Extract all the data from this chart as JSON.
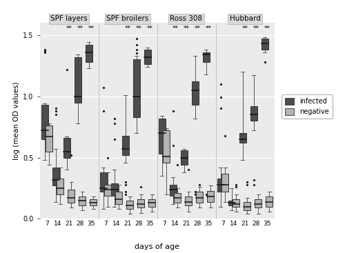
{
  "panels": [
    "SPF layers",
    "SPF broilers",
    "Ross 308",
    "Hubbard"
  ],
  "days": [
    7,
    14,
    21,
    28,
    35
  ],
  "infected_color": "#4d4d4d",
  "negative_color": "#b3b3b3",
  "background_color": "#ebebeb",
  "panel_header_color": "#d9d9d9",
  "grid_color": "#ffffff",
  "ylabel": "log (mean OD values)",
  "xlabel": "days of age",
  "ylim": [
    0.0,
    1.6
  ],
  "yticks": [
    0.0,
    0.5,
    1.0,
    1.5
  ],
  "significant_days": {
    "SPF layers": [
      21,
      28,
      35
    ],
    "SPF broilers": [
      21,
      28,
      35
    ],
    "Ross 308": [
      14,
      21,
      28,
      35
    ],
    "Hubbard": [
      21,
      28,
      35
    ]
  },
  "infected_boxes": {
    "SPF layers": {
      "7": {
        "q1": 0.65,
        "med": 0.72,
        "q3": 0.93,
        "whislo": 0.48,
        "whishi": 0.94,
        "fliers": [
          1.36,
          1.37,
          1.38
        ]
      },
      "14": {
        "q1": 0.27,
        "med": 0.32,
        "q3": 0.42,
        "whislo": 0.14,
        "whishi": 0.57,
        "fliers": [
          0.85,
          0.88,
          0.9
        ]
      },
      "21": {
        "q1": 0.5,
        "med": 0.55,
        "q3": 0.66,
        "whislo": 0.4,
        "whishi": 0.67,
        "fliers": [
          1.22
        ]
      },
      "28": {
        "q1": 0.95,
        "med": 1.0,
        "q3": 1.32,
        "whislo": 0.78,
        "whishi": 1.34,
        "fliers": []
      },
      "35": {
        "q1": 1.28,
        "med": 1.36,
        "q3": 1.42,
        "whislo": 1.23,
        "whishi": 1.44,
        "fliers": []
      }
    },
    "SPF broilers": {
      "7": {
        "q1": 0.22,
        "med": 0.25,
        "q3": 0.38,
        "whislo": 0.08,
        "whishi": 0.42,
        "fliers": [
          0.88,
          1.07
        ]
      },
      "14": {
        "q1": 0.19,
        "med": 0.24,
        "q3": 0.29,
        "whislo": 0.1,
        "whishi": 0.4,
        "fliers": [
          0.65,
          0.78,
          0.82
        ]
      },
      "21": {
        "q1": 0.52,
        "med": 0.57,
        "q3": 0.68,
        "whislo": 0.46,
        "whishi": 1.01,
        "fliers": [
          0.2,
          0.22,
          0.28,
          0.3
        ]
      },
      "28": {
        "q1": 0.83,
        "med": 1.0,
        "q3": 1.3,
        "whislo": 0.7,
        "whishi": 1.33,
        "fliers": [
          1.35,
          1.38,
          1.42,
          1.47
        ]
      },
      "35": {
        "q1": 1.26,
        "med": 1.32,
        "q3": 1.38,
        "whislo": 1.24,
        "whishi": 1.4,
        "fliers": []
      }
    },
    "Ross 308": {
      "7": {
        "q1": 0.53,
        "med": 0.7,
        "q3": 0.82,
        "whislo": 0.35,
        "whishi": 0.84,
        "fliers": []
      },
      "14": {
        "q1": 0.19,
        "med": 0.24,
        "q3": 0.28,
        "whislo": 0.12,
        "whishi": 0.34,
        "fliers": [
          0.6,
          0.88
        ]
      },
      "21": {
        "q1": 0.44,
        "med": 0.5,
        "q3": 0.56,
        "whislo": 0.38,
        "whishi": 0.57,
        "fliers": []
      },
      "28": {
        "q1": 0.93,
        "med": 1.05,
        "q3": 1.12,
        "whislo": 0.82,
        "whishi": 1.33,
        "fliers": [
          0.2,
          0.22
        ]
      },
      "35": {
        "q1": 1.28,
        "med": 1.34,
        "q3": 1.36,
        "whislo": 1.18,
        "whishi": 1.38,
        "fliers": [
          0.2
        ]
      }
    },
    "Hubbard": {
      "7": {
        "q1": 0.22,
        "med": 0.28,
        "q3": 0.33,
        "whislo": 0.1,
        "whishi": 0.42,
        "fliers": [
          0.9,
          0.99,
          1.1
        ]
      },
      "14": {
        "q1": 0.11,
        "med": 0.13,
        "q3": 0.15,
        "whislo": 0.07,
        "whishi": 0.25,
        "fliers": []
      },
      "21": {
        "q1": 0.62,
        "med": 0.65,
        "q3": 0.7,
        "whislo": 0.48,
        "whishi": 1.2,
        "fliers": []
      },
      "28": {
        "q1": 0.8,
        "med": 0.85,
        "q3": 0.92,
        "whislo": 0.72,
        "whishi": 1.17,
        "fliers": [
          0.28,
          0.32
        ]
      },
      "35": {
        "q1": 1.38,
        "med": 1.43,
        "q3": 1.47,
        "whislo": 1.36,
        "whishi": 1.48,
        "fliers": [
          1.28
        ]
      }
    }
  },
  "negative_boxes": {
    "SPF layers": {
      "7": {
        "q1": 0.55,
        "med": 0.67,
        "q3": 0.76,
        "whislo": 0.44,
        "whishi": 0.78,
        "fliers": []
      },
      "14": {
        "q1": 0.2,
        "med": 0.25,
        "q3": 0.33,
        "whislo": 0.12,
        "whishi": 0.42,
        "fliers": []
      },
      "21": {
        "q1": 0.13,
        "med": 0.17,
        "q3": 0.24,
        "whislo": 0.09,
        "whishi": 0.3,
        "fliers": [
          0.52
        ]
      },
      "28": {
        "q1": 0.11,
        "med": 0.15,
        "q3": 0.18,
        "whislo": 0.07,
        "whishi": 0.22,
        "fliers": []
      },
      "35": {
        "q1": 0.11,
        "med": 0.13,
        "q3": 0.16,
        "whislo": 0.08,
        "whishi": 0.18,
        "fliers": []
      }
    },
    "SPF broilers": {
      "7": {
        "q1": 0.19,
        "med": 0.24,
        "q3": 0.28,
        "whislo": 0.1,
        "whishi": 0.38,
        "fliers": [
          0.5
        ]
      },
      "14": {
        "q1": 0.12,
        "med": 0.16,
        "q3": 0.22,
        "whislo": 0.08,
        "whishi": 0.28,
        "fliers": []
      },
      "21": {
        "q1": 0.08,
        "med": 0.11,
        "q3": 0.15,
        "whislo": 0.04,
        "whishi": 0.18,
        "fliers": []
      },
      "28": {
        "q1": 0.09,
        "med": 0.12,
        "q3": 0.16,
        "whislo": 0.05,
        "whishi": 0.2,
        "fliers": [
          0.26
        ]
      },
      "35": {
        "q1": 0.1,
        "med": 0.13,
        "q3": 0.16,
        "whislo": 0.06,
        "whishi": 0.2,
        "fliers": []
      }
    },
    "Ross 308": {
      "7": {
        "q1": 0.46,
        "med": 0.51,
        "q3": 0.72,
        "whislo": 0.2,
        "whishi": 0.74,
        "fliers": []
      },
      "14": {
        "q1": 0.13,
        "med": 0.17,
        "q3": 0.21,
        "whislo": 0.09,
        "whishi": 0.25,
        "fliers": [
          0.44
        ]
      },
      "21": {
        "q1": 0.11,
        "med": 0.14,
        "q3": 0.18,
        "whislo": 0.06,
        "whishi": 0.22,
        "fliers": [
          0.4
        ]
      },
      "28": {
        "q1": 0.13,
        "med": 0.17,
        "q3": 0.22,
        "whislo": 0.09,
        "whishi": 0.26,
        "fliers": [
          0.28
        ]
      },
      "35": {
        "q1": 0.14,
        "med": 0.18,
        "q3": 0.23,
        "whislo": 0.09,
        "whishi": 0.27,
        "fliers": []
      }
    },
    "Hubbard": {
      "7": {
        "q1": 0.22,
        "med": 0.28,
        "q3": 0.37,
        "whislo": 0.14,
        "whishi": 0.42,
        "fliers": [
          0.68
        ]
      },
      "14": {
        "q1": 0.1,
        "med": 0.12,
        "q3": 0.16,
        "whislo": 0.06,
        "whishi": 0.2,
        "fliers": [
          0.26,
          0.28
        ]
      },
      "21": {
        "q1": 0.07,
        "med": 0.1,
        "q3": 0.14,
        "whislo": 0.04,
        "whishi": 0.17,
        "fliers": [
          0.28,
          0.3
        ]
      },
      "28": {
        "q1": 0.09,
        "med": 0.12,
        "q3": 0.16,
        "whislo": 0.04,
        "whishi": 0.2,
        "fliers": []
      },
      "35": {
        "q1": 0.1,
        "med": 0.14,
        "q3": 0.18,
        "whislo": 0.06,
        "whishi": 0.22,
        "fliers": []
      }
    }
  }
}
